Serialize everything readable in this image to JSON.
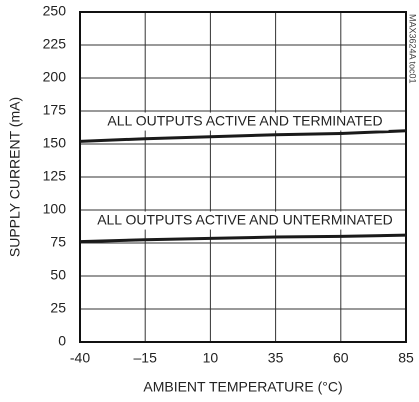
{
  "chart_data": {
    "type": "line",
    "x_label": "AMBIENT TEMPERATURE (°C)",
    "y_label": "SUPPLY CURRENT (mA)",
    "side_note": "MAX3624A toc01",
    "x": [
      -40,
      -15,
      10,
      35,
      60,
      85
    ],
    "series": [
      {
        "name": "ALL OUTPUTS ACTIVE AND TERMINATED",
        "color": "#1a1a1a",
        "values": [
          152,
          154,
          155.5,
          157,
          158,
          160
        ]
      },
      {
        "name": "ALL OUTPUTS ACTIVE AND UNTERMINATED",
        "color": "#1a1a1a",
        "values": [
          76,
          77.5,
          78.5,
          79.5,
          80,
          81
        ]
      }
    ],
    "xlim": [
      -40,
      85
    ],
    "xticks": [
      -40,
      {
        "value": -15,
        "label": "–15"
      },
      10,
      35,
      60,
      85
    ],
    "ylim": [
      0,
      250
    ],
    "yticks": [
      0,
      25,
      50,
      75,
      100,
      125,
      150,
      175,
      200,
      225,
      250
    ],
    "grid": true
  }
}
